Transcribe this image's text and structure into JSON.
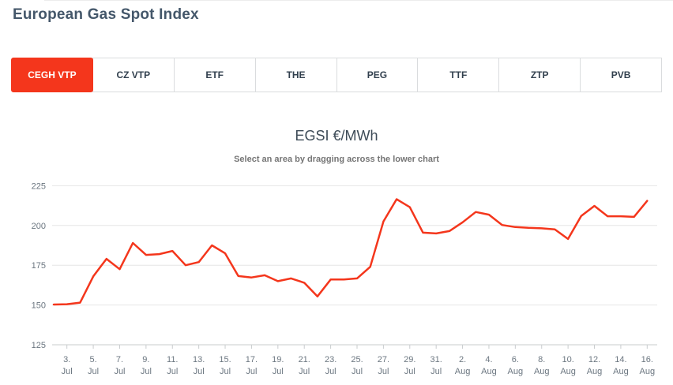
{
  "page": {
    "title": "European Gas Spot Index"
  },
  "tabs": [
    {
      "label": "CEGH VTP",
      "active": true
    },
    {
      "label": "CZ VTP",
      "active": false
    },
    {
      "label": "ETF",
      "active": false
    },
    {
      "label": "THE",
      "active": false
    },
    {
      "label": "PEG",
      "active": false
    },
    {
      "label": "TTF",
      "active": false
    },
    {
      "label": "ZTP",
      "active": false
    },
    {
      "label": "PVB",
      "active": false
    }
  ],
  "colors": {
    "accent_red": "#f4361c",
    "page_title": "#44576a",
    "tab_text": "#32404e",
    "tab_border": "#dadcde",
    "grid_line": "#e6e6e6",
    "axis_line": "#c9ccce",
    "axis_text": "#6b7680"
  },
  "chart_data": {
    "type": "line",
    "title": "EGSI €/MWh",
    "subtitle": "Select an area by dragging across the lower chart",
    "xlabel": "",
    "ylabel": "",
    "ylim": [
      125,
      233
    ],
    "yticks": [
      125,
      150,
      175,
      200,
      225
    ],
    "grid": "horizontal-only",
    "legend": "none",
    "x_tick_rule": "every 2nd day, starting 3. Jul",
    "categories": [
      "2. Jul",
      "3. Jul",
      "4. Jul",
      "5. Jul",
      "6. Jul",
      "7. Jul",
      "8. Jul",
      "9. Jul",
      "10. Jul",
      "11. Jul",
      "12. Jul",
      "13. Jul",
      "14. Jul",
      "15. Jul",
      "16. Jul",
      "17. Jul",
      "18. Jul",
      "19. Jul",
      "20. Jul",
      "21. Jul",
      "22. Jul",
      "23. Jul",
      "24. Jul",
      "25. Jul",
      "26. Jul",
      "27. Jul",
      "28. Jul",
      "29. Jul",
      "30. Jul",
      "31. Jul",
      "1. Aug",
      "2. Aug",
      "3. Aug",
      "4. Aug",
      "5. Aug",
      "6. Aug",
      "7. Aug",
      "8. Aug",
      "9. Aug",
      "10. Aug",
      "11. Aug",
      "12. Aug",
      "13. Aug",
      "14. Aug",
      "15. Aug",
      "16. Aug"
    ],
    "series": [
      {
        "name": "EGSI €/MWh",
        "color": "#f4361c",
        "values": [
          150.3,
          150.5,
          151.5,
          168.0,
          179.0,
          172.5,
          189.0,
          181.5,
          182.0,
          184.0,
          175.0,
          177.0,
          187.5,
          182.5,
          168.2,
          167.3,
          168.7,
          165.0,
          166.7,
          164.0,
          155.4,
          166.0,
          166.0,
          166.7,
          174.0,
          202.5,
          216.5,
          211.5,
          195.5,
          195.0,
          196.5,
          202.0,
          208.5,
          206.8,
          200.3,
          199.0,
          198.5,
          198.2,
          197.5,
          191.5,
          206.0,
          212.3,
          205.8,
          205.8,
          205.4,
          215.5
        ]
      }
    ]
  }
}
